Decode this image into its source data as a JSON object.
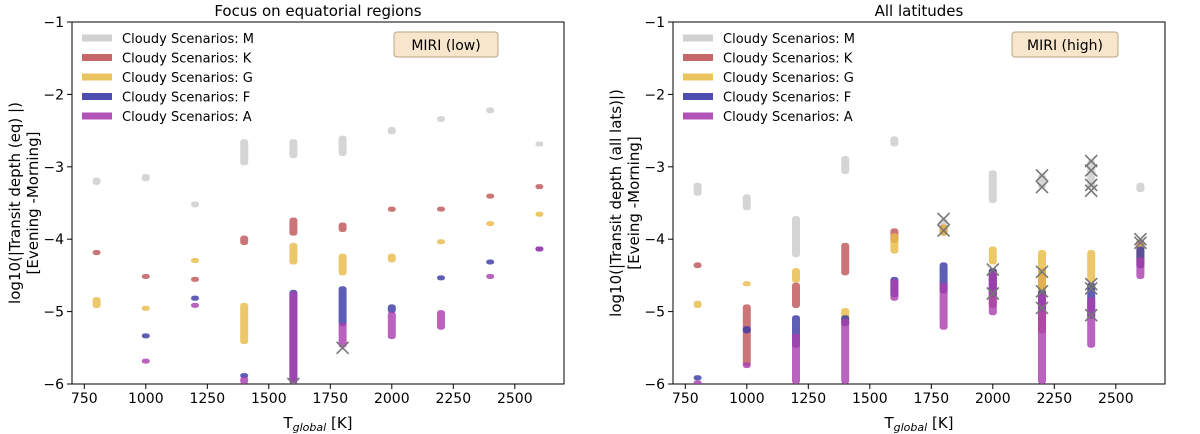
{
  "colors": {
    "M": "#cccccc",
    "K": "#c0575a",
    "G": "#e8bc4a",
    "F": "#3a3aa6",
    "A": "#a93fb0",
    "overlap": "#6a1a8a",
    "cross": "#777777",
    "badge_fill": "#f8e6cc",
    "badge_stroke": "#b8a488"
  },
  "chart_data": [
    {
      "type": "scatter",
      "title": "Focus on equatorial regions",
      "xlabel_main": "T",
      "xlabel_sub": "global",
      "xlabel_unit": " [K]",
      "ylabel_line1": "log10(|Transit depth (eq) |)",
      "ylabel_line2": "[Evening -Morning]",
      "xlim": [
        700,
        2700
      ],
      "ylim": [
        -6,
        -1
      ],
      "xticks": [
        750,
        1000,
        1250,
        1500,
        1750,
        2000,
        2250,
        2500
      ],
      "yticks": [
        -6,
        -5,
        -4,
        -3,
        -2,
        -1
      ],
      "xtick_labels": [
        "750",
        "1000",
        "1250",
        "1500",
        "1750",
        "2000",
        "2250",
        "2500"
      ],
      "ytick_labels": [
        "−6",
        "−5",
        "−4",
        "−3",
        "−2",
        "−1"
      ],
      "badge": "MIRI (low)",
      "legend": [
        "Cloudy Scenarios: M",
        "Cloudy Scenarios: K",
        "Cloudy Scenarios: G",
        "Cloudy Scenarios: F",
        "Cloudy Scenarios: A"
      ],
      "series": [
        {
          "name": "M",
          "points": [
            [
              800,
              -3.15,
              -3.25
            ],
            [
              1000,
              -3.1,
              -3.2
            ],
            [
              1200,
              -3.48,
              -3.56
            ],
            [
              1400,
              -2.62,
              -2.98
            ],
            [
              1600,
              -2.62,
              -2.88
            ],
            [
              1800,
              -2.57,
              -2.85
            ],
            [
              2000,
              -2.45,
              -2.55
            ],
            [
              2200,
              -2.3,
              -2.38
            ],
            [
              2400,
              -2.18,
              -2.26
            ],
            [
              2600,
              -2.65,
              -2.72
            ]
          ]
        },
        {
          "name": "K",
          "points": [
            [
              800,
              -4.15,
              -4.22
            ],
            [
              1000,
              -4.48,
              -4.55
            ],
            [
              1200,
              -4.52,
              -4.58
            ],
            [
              1400,
              -3.95,
              -4.08
            ],
            [
              1600,
              -3.7,
              -3.95
            ],
            [
              1800,
              -3.77,
              -3.9
            ],
            [
              2000,
              -3.55,
              -3.62
            ],
            [
              2200,
              -3.55,
              -3.6
            ],
            [
              2400,
              -3.37,
              -3.43
            ],
            [
              2600,
              -3.24,
              -3.3
            ]
          ]
        },
        {
          "name": "G",
          "points": [
            [
              800,
              -4.8,
              -4.95
            ],
            [
              1000,
              -4.92,
              -4.98
            ],
            [
              1200,
              -4.26,
              -4.32
            ],
            [
              1400,
              -4.88,
              -5.45
            ],
            [
              1600,
              -4.05,
              -4.35
            ],
            [
              1800,
              -4.2,
              -4.5
            ],
            [
              2000,
              -4.2,
              -4.32
            ],
            [
              2200,
              -4.0,
              -4.06
            ],
            [
              2400,
              -3.75,
              -3.8
            ],
            [
              2600,
              -3.62,
              -3.67
            ]
          ]
        },
        {
          "name": "F",
          "points": [
            [
              1000,
              -5.3,
              -5.36
            ],
            [
              1200,
              -4.78,
              -4.85
            ],
            [
              1400,
              -5.85,
              -5.92
            ],
            [
              1600,
              -4.7,
              -6.0
            ],
            [
              1800,
              -4.65,
              -5.2
            ],
            [
              2000,
              -4.9,
              -5.02
            ],
            [
              2200,
              -4.5,
              -4.56
            ],
            [
              2400,
              -4.28,
              -4.33
            ],
            [
              2600,
              -4.1,
              -4.16
            ]
          ]
        },
        {
          "name": "A",
          "points": [
            [
              1000,
              -5.65,
              -5.7
            ],
            [
              1200,
              -4.88,
              -4.93
            ],
            [
              1400,
              -5.9,
              -6.0
            ],
            [
              1600,
              -4.72,
              -6.0
            ],
            [
              1800,
              -5.15,
              -5.5
            ],
            [
              2000,
              -5.0,
              -5.38
            ],
            [
              2200,
              -4.98,
              -5.25
            ],
            [
              2400,
              -4.48,
              -4.53
            ],
            [
              2600,
              -4.1,
              -4.16
            ]
          ]
        }
      ],
      "crosses": [
        [
          1800,
          -5.5
        ],
        [
          1600,
          -6.0
        ]
      ]
    },
    {
      "type": "scatter",
      "title": "All latitudes",
      "xlabel_main": "T",
      "xlabel_sub": "global",
      "xlabel_unit": " [K]",
      "ylabel_line1": "log10(|Transit depth (all lats)|)",
      "ylabel_line2": "[Eveing -Morning]",
      "xlim": [
        700,
        2700
      ],
      "ylim": [
        -6,
        -1
      ],
      "xticks": [
        750,
        1000,
        1250,
        1500,
        1750,
        2000,
        2250,
        2500
      ],
      "yticks": [
        -6,
        -5,
        -4,
        -3,
        -2,
        -1
      ],
      "xtick_labels": [
        "750",
        "1000",
        "1250",
        "1500",
        "1750",
        "2000",
        "2250",
        "2500"
      ],
      "ytick_labels": [
        "−6",
        "−5",
        "−4",
        "−3",
        "−2",
        "−1"
      ],
      "badge": "MIRI (high)",
      "legend": [
        "Cloudy Scenarios: M",
        "Cloudy Scenarios: K",
        "Cloudy Scenarios: G",
        "Cloudy Scenarios: F",
        "Cloudy Scenarios: A"
      ],
      "series": [
        {
          "name": "M",
          "points": [
            [
              800,
              -3.22,
              -3.4
            ],
            [
              1000,
              -3.38,
              -3.6
            ],
            [
              1200,
              -3.68,
              -4.25
            ],
            [
              1400,
              -2.85,
              -3.1
            ],
            [
              1600,
              -2.58,
              -2.72
            ],
            [
              1800,
              -3.72,
              -3.95
            ],
            [
              2000,
              -3.05,
              -3.5
            ],
            [
              2200,
              -3.1,
              -3.3
            ],
            [
              2400,
              -2.9,
              -3.3
            ],
            [
              2600,
              -3.22,
              -3.35
            ]
          ]
        },
        {
          "name": "K",
          "points": [
            [
              800,
              -4.32,
              -4.4
            ],
            [
              1000,
              -4.9,
              -5.75
            ],
            [
              1200,
              -4.6,
              -4.95
            ],
            [
              1400,
              -4.05,
              -4.5
            ],
            [
              1600,
              -3.85,
              -4.05
            ],
            [
              1800,
              -3.8,
              -3.95
            ],
            [
              2000,
              -4.4,
              -4.95
            ],
            [
              2200,
              -4.4,
              -5.3
            ],
            [
              2400,
              -4.6,
              -4.7
            ],
            [
              2600,
              -4.0,
              -4.35
            ]
          ]
        },
        {
          "name": "G",
          "points": [
            [
              800,
              -4.85,
              -4.95
            ],
            [
              1000,
              -4.58,
              -4.65
            ],
            [
              1200,
              -4.4,
              -4.6
            ],
            [
              1400,
              -4.95,
              -5.2
            ],
            [
              1600,
              -3.92,
              -4.2
            ],
            [
              1800,
              -3.8,
              -3.95
            ],
            [
              2000,
              -4.1,
              -4.35
            ],
            [
              2200,
              -4.15,
              -4.85
            ],
            [
              2400,
              -4.15,
              -4.6
            ],
            [
              2600,
              -4.05,
              -4.4
            ]
          ]
        },
        {
          "name": "F",
          "points": [
            [
              800,
              -5.88,
              -5.95
            ],
            [
              1000,
              -5.2,
              -5.3
            ],
            [
              1200,
              -5.05,
              -5.5
            ],
            [
              1400,
              -5.05,
              -5.2
            ],
            [
              1600,
              -4.52,
              -4.8
            ],
            [
              1800,
              -4.32,
              -4.75
            ],
            [
              2000,
              -4.4,
              -4.8
            ],
            [
              2200,
              -4.7,
              -5.0
            ],
            [
              2400,
              -4.6,
              -5.1
            ],
            [
              2600,
              -4.1,
              -4.4
            ]
          ]
        },
        {
          "name": "A",
          "points": [
            [
              800,
              -5.95,
              -6.0
            ],
            [
              1000,
              -5.7,
              -5.78
            ],
            [
              1200,
              -5.3,
              -6.0
            ],
            [
              1400,
              -5.1,
              -6.0
            ],
            [
              1600,
              -4.55,
              -4.85
            ],
            [
              1800,
              -4.6,
              -5.25
            ],
            [
              2000,
              -4.45,
              -5.05
            ],
            [
              2200,
              -4.75,
              -6.0
            ],
            [
              2400,
              -4.8,
              -5.5
            ],
            [
              2600,
              -4.25,
              -4.55
            ]
          ]
        }
      ],
      "crosses": [
        [
          1800,
          -3.72
        ],
        [
          1800,
          -3.88
        ],
        [
          2000,
          -4.42
        ],
        [
          2000,
          -4.75
        ],
        [
          2200,
          -3.12
        ],
        [
          2200,
          -3.28
        ],
        [
          2200,
          -4.45
        ],
        [
          2200,
          -4.72
        ],
        [
          2200,
          -4.95
        ],
        [
          2400,
          -2.92
        ],
        [
          2400,
          -3.05
        ],
        [
          2400,
          -3.25
        ],
        [
          2400,
          -3.33
        ],
        [
          2400,
          -4.62
        ],
        [
          2400,
          -4.68
        ],
        [
          2400,
          -5.05
        ],
        [
          2600,
          -4.0
        ],
        [
          2600,
          -4.05
        ]
      ]
    }
  ]
}
